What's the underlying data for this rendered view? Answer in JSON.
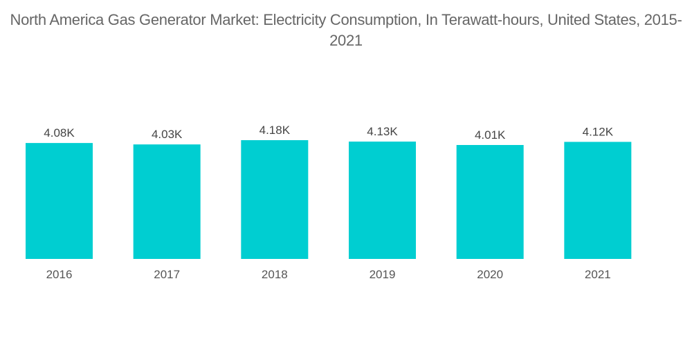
{
  "chart_data": {
    "type": "bar",
    "title": "North America Gas Generator Market: Electricity Consumption, In Terawatt-hours, United States, 2015-2021",
    "xlabel": "",
    "ylabel": "",
    "categories": [
      "2016",
      "2017",
      "2018",
      "2019",
      "2020",
      "2021"
    ],
    "values": [
      4080,
      4030,
      4180,
      4130,
      4010,
      4120
    ],
    "data_labels": [
      "4.08K",
      "4.03K",
      "4.18K",
      "4.13K",
      "4.01K",
      "4.12K"
    ],
    "ylim": [
      0,
      4180
    ],
    "grid": false,
    "legend": "none",
    "colors": {
      "bar": "#00ced1",
      "label": "#444444",
      "title": "#666666"
    }
  }
}
